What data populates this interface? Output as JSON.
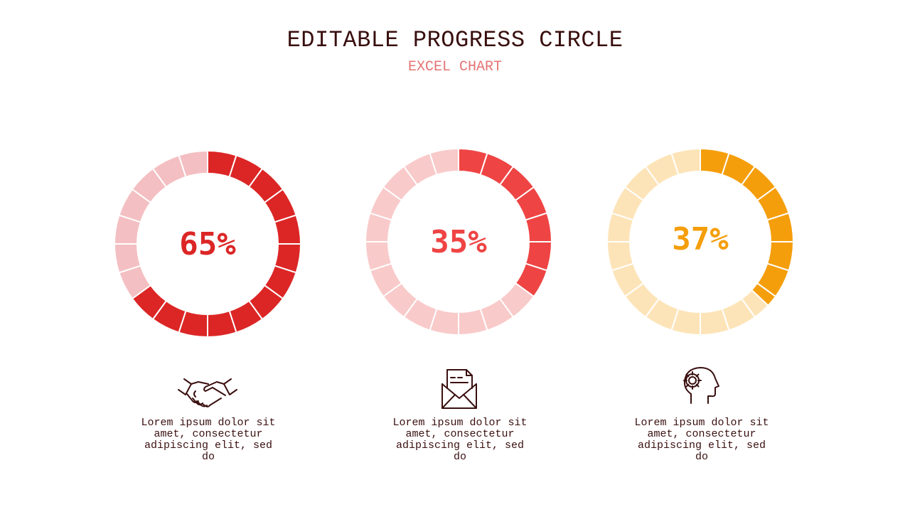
{
  "header": {
    "title": "EDITABLE PROGRESS CIRCLE",
    "subtitle": "EXCEL CHART"
  },
  "chart_data": [
    {
      "type": "pie",
      "values": [
        65,
        35
      ],
      "label": "65%",
      "color": "#dc2626",
      "track_color": "#f4bfc2"
    },
    {
      "type": "pie",
      "values": [
        35,
        65
      ],
      "label": "35%",
      "color": "#ef4444",
      "track_color": "#f9caca"
    },
    {
      "type": "pie",
      "values": [
        37,
        63
      ],
      "label": "37%",
      "color": "#f59e0b",
      "track_color": "#fde4b8"
    }
  ],
  "items": [
    {
      "icon": "handshake-icon",
      "text": "Lorem ipsum dolor sit amet, consectetur adipiscing elit, sed do"
    },
    {
      "icon": "envelope-icon",
      "text": "Lorem ipsum dolor sit amet, consectetur adipiscing elit, sed do"
    },
    {
      "icon": "head-gear-icon",
      "text": "Lorem ipsum dolor sit amet, consectetur adipiscing elit, sed do"
    }
  ]
}
